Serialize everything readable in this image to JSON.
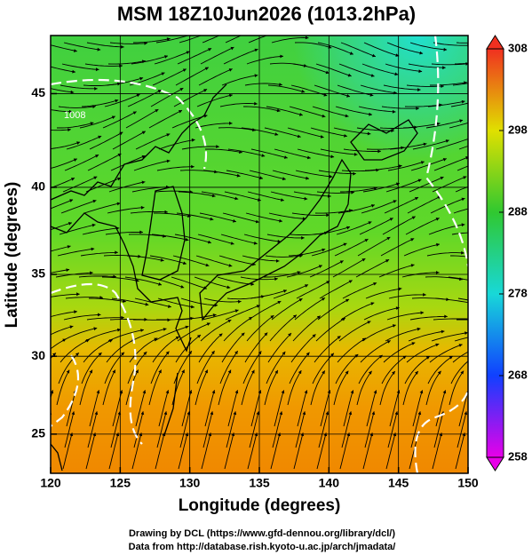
{
  "chart_data": {
    "type": "map",
    "title": "MSM 18Z10Jun2026 (1013.2hPa)",
    "x_label": "Longitude (degrees)",
    "y_label": "Latitude  (degrees)",
    "xlim": [
      120,
      150
    ],
    "xticks": [
      120,
      125,
      130,
      135,
      140,
      145,
      150
    ],
    "ylim": [
      22.4,
      47.9
    ],
    "yticks": [
      25,
      30,
      35,
      40,
      45
    ],
    "grid": true,
    "colorbar": {
      "lim": [
        258,
        308
      ],
      "ticks": [
        258,
        268,
        278,
        288,
        298,
        308
      ],
      "colors": [
        "#e800e8",
        "#1040ff",
        "#18d8d8",
        "#30c830",
        "#e0e000",
        "#f03020"
      ]
    },
    "contour_label": "1008",
    "credits": [
      "Drawing by DCL (https://www.gfd-dennou.org/library/dcl/)",
      "Data from http://database.rish.kyoto-u.ac.jp/arch/jmadata/"
    ]
  }
}
